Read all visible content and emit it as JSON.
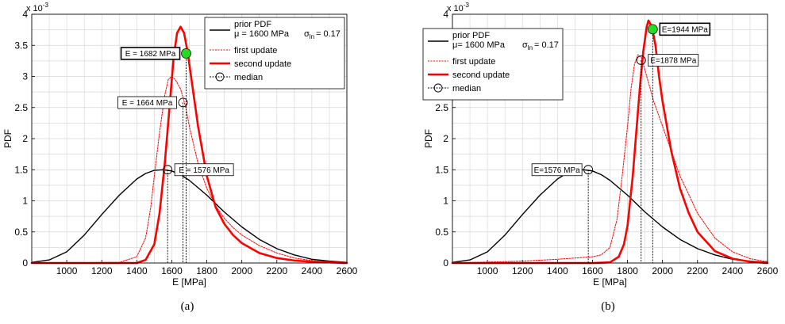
{
  "chart_data": [
    {
      "type": "line",
      "caption": "(a)",
      "xlabel": "E [MPa]",
      "ylabel": "PDF",
      "y_multiplier": "x 10",
      "y_multiplier_exp": "-3",
      "xlim": [
        800,
        2600
      ],
      "ylim": [
        0,
        0.004
      ],
      "xticks": [
        1000,
        1200,
        1400,
        1600,
        1800,
        2000,
        2200,
        2400,
        2600
      ],
      "yticks": [
        0,
        0.5,
        1,
        1.5,
        2,
        2.5,
        3,
        3.5,
        4
      ],
      "grid": true,
      "legend_position": "top-right",
      "legend": {
        "prior": "prior PDF",
        "prior_mu": "μ = 1600 MPa",
        "prior_sigma": "σ",
        "prior_sigma_sub": "ln",
        "prior_sigma_val": "= 0.17",
        "first": "first update",
        "second": "second update",
        "median": "median"
      },
      "series": [
        {
          "name": "prior PDF",
          "color": "#000000",
          "style": "solid",
          "x": [
            800,
            900,
            1000,
            1100,
            1200,
            1300,
            1400,
            1450,
            1500,
            1550,
            1600,
            1650,
            1700,
            1800,
            1900,
            2000,
            2100,
            2200,
            2300,
            2400,
            2500,
            2600
          ],
          "y": [
            1e-05,
            5e-05,
            0.00018,
            0.00045,
            0.00078,
            0.00109,
            0.00135,
            0.00144,
            0.00149,
            0.0015,
            0.00148,
            0.00142,
            0.00133,
            0.00109,
            0.00082,
            0.00058,
            0.00038,
            0.00023,
            0.00013,
            6e-05,
            3e-05,
            1e-05
          ]
        },
        {
          "name": "first update",
          "color": "#ff0000",
          "style": "dotted",
          "x": [
            800,
            1300,
            1400,
            1450,
            1480,
            1500,
            1530,
            1560,
            1580,
            1600,
            1620,
            1650,
            1680,
            1700,
            1750,
            1800,
            1850,
            1900,
            1950,
            2000,
            2100,
            2200,
            2300,
            2400,
            2500,
            2600
          ],
          "y": [
            0,
            1e-05,
            0.0001,
            0.0004,
            0.0009,
            0.0014,
            0.0021,
            0.0027,
            0.00295,
            0.003,
            0.00295,
            0.0028,
            0.0025,
            0.0022,
            0.0016,
            0.0012,
            0.00092,
            0.00072,
            0.00057,
            0.00045,
            0.00028,
            0.00016,
            8e-05,
            4e-05,
            2e-05,
            1e-05
          ]
        },
        {
          "name": "second update",
          "color": "#ff0000",
          "style": "solid-thick",
          "x": [
            800,
            1400,
            1450,
            1500,
            1530,
            1560,
            1590,
            1610,
            1630,
            1650,
            1670,
            1690,
            1700,
            1720,
            1750,
            1800,
            1850,
            1900,
            1950,
            2000,
            2100,
            2200,
            2300,
            2400,
            2500,
            2600
          ],
          "y": [
            0,
            0,
            5e-05,
            0.0003,
            0.0008,
            0.0016,
            0.0026,
            0.0033,
            0.0037,
            0.0038,
            0.0037,
            0.0034,
            0.0032,
            0.0028,
            0.0022,
            0.0014,
            0.0009,
            0.00063,
            0.00045,
            0.00032,
            0.00016,
            8e-05,
            4e-05,
            2e-05,
            1e-05,
            0
          ]
        }
      ],
      "medians": [
        {
          "x": 1576,
          "y": 0.0015,
          "label": "E = 1576 MPa",
          "label_side": "right"
        },
        {
          "x": 1664,
          "y": 0.00258,
          "label": "E = 1664 MPa",
          "label_side": "left"
        },
        {
          "x": 1682,
          "y": 0.00337,
          "label": "E = 1682 MPa",
          "label_side": "left",
          "highlight": true
        }
      ],
      "highlight_color": "#22dd22"
    },
    {
      "type": "line",
      "caption": "(b)",
      "xlabel": "E [MPa]",
      "ylabel": "PDF",
      "y_multiplier": "x 10",
      "y_multiplier_exp": "-3",
      "xlim": [
        800,
        2600
      ],
      "ylim": [
        0,
        0.004
      ],
      "xticks": [
        1000,
        1200,
        1400,
        1600,
        1800,
        2000,
        2200,
        2400,
        2600
      ],
      "yticks": [
        0,
        0.5,
        1,
        1.5,
        2,
        2.5,
        3,
        3.5,
        4
      ],
      "grid": true,
      "legend_position": "top-left",
      "legend": {
        "prior": "prior PDF",
        "prior_mu": "μ= 1600 MPa",
        "prior_sigma": "σ",
        "prior_sigma_sub": "ln",
        "prior_sigma_val": "= 0.17",
        "first": "first update",
        "second": "second update",
        "median": "median"
      },
      "series": [
        {
          "name": "prior PDF",
          "color": "#000000",
          "style": "solid",
          "x": [
            800,
            900,
            1000,
            1100,
            1200,
            1300,
            1400,
            1450,
            1500,
            1550,
            1600,
            1650,
            1700,
            1800,
            1900,
            2000,
            2100,
            2200,
            2300,
            2400,
            2500,
            2600
          ],
          "y": [
            1e-05,
            5e-05,
            0.00018,
            0.00045,
            0.00078,
            0.00109,
            0.00135,
            0.00144,
            0.00149,
            0.0015,
            0.00148,
            0.00142,
            0.00133,
            0.00109,
            0.00082,
            0.00058,
            0.00038,
            0.00023,
            0.00013,
            6e-05,
            3e-05,
            1e-05
          ]
        },
        {
          "name": "first update",
          "color": "#ff0000",
          "style": "dotted",
          "x": [
            800,
            1200,
            1400,
            1600,
            1650,
            1700,
            1740,
            1770,
            1800,
            1820,
            1840,
            1860,
            1880,
            1900,
            1920,
            1950,
            2000,
            2050,
            2100,
            2150,
            2200,
            2300,
            2400,
            2500,
            2600
          ],
          "y": [
            0,
            3e-05,
            6e-05,
            0.0001,
            0.00013,
            0.00025,
            0.0007,
            0.0014,
            0.0022,
            0.0028,
            0.0032,
            0.00335,
            0.0033,
            0.0031,
            0.0029,
            0.0026,
            0.0022,
            0.0018,
            0.0014,
            0.0011,
            0.0008,
            0.0004,
            0.00018,
            7e-05,
            2e-05
          ]
        },
        {
          "name": "second update",
          "color": "#ff0000",
          "style": "solid-thick",
          "x": [
            800,
            1600,
            1700,
            1750,
            1780,
            1800,
            1830,
            1850,
            1870,
            1890,
            1910,
            1920,
            1940,
            1960,
            1980,
            2000,
            2050,
            2100,
            2150,
            2200,
            2300,
            2400,
            2500,
            2600
          ],
          "y": [
            0,
            0,
            1e-05,
            0.0001,
            0.0003,
            0.0006,
            0.0014,
            0.0021,
            0.0028,
            0.0034,
            0.0038,
            0.0039,
            0.0038,
            0.0035,
            0.003,
            0.0026,
            0.0018,
            0.0012,
            0.0008,
            0.0005,
            0.00019,
            7e-05,
            2e-05,
            0
          ]
        }
      ],
      "medians": [
        {
          "x": 1576,
          "y": 0.0015,
          "label": "E=1576 MPa",
          "label_side": "left"
        },
        {
          "x": 1878,
          "y": 0.00326,
          "label": "E=1878 MPa",
          "label_side": "right"
        },
        {
          "x": 1944,
          "y": 0.00376,
          "label": "E=1944 MPa",
          "label_side": "right",
          "highlight": true
        }
      ],
      "highlight_color": "#22dd22"
    }
  ]
}
